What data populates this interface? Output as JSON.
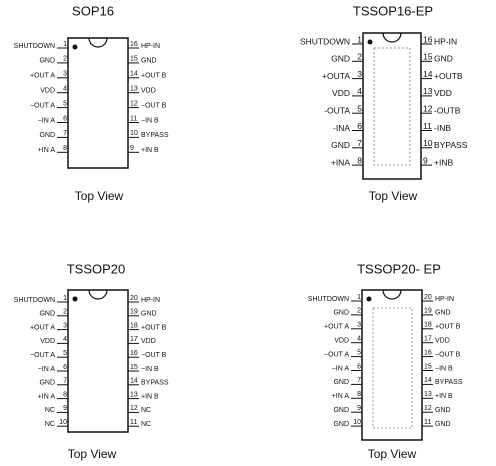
{
  "packages": [
    {
      "title": "SOP16",
      "caption": "Top View",
      "exposed_pad": false,
      "left": [
        {
          "number": "1",
          "label": "SHUTDOWN"
        },
        {
          "number": "2",
          "label": "GND"
        },
        {
          "number": "3",
          "label": "+OUT A"
        },
        {
          "number": "4",
          "label": "VDD"
        },
        {
          "number": "5",
          "label": "−OUT A"
        },
        {
          "number": "6",
          "label": "−IN A"
        },
        {
          "number": "7",
          "label": "GND"
        },
        {
          "number": "8",
          "label": "+IN A"
        }
      ],
      "right": [
        {
          "number": "16",
          "label": "HP-IN"
        },
        {
          "number": "15",
          "label": "GND"
        },
        {
          "number": "14",
          "label": "+OUT B"
        },
        {
          "number": "13",
          "label": "VDD"
        },
        {
          "number": "12",
          "label": "−OUT B"
        },
        {
          "number": "11",
          "label": "−IN B"
        },
        {
          "number": "10",
          "label": "BYPASS"
        },
        {
          "number": "9",
          "label": "+IN B"
        }
      ]
    },
    {
      "title": "TSSOP16-EP",
      "caption": "Top View",
      "exposed_pad": true,
      "left": [
        {
          "number": "1",
          "label": "SHUTDOWN"
        },
        {
          "number": "2",
          "label": "GND"
        },
        {
          "number": "3",
          "label": "+OUTA"
        },
        {
          "number": "4",
          "label": "VDD"
        },
        {
          "number": "5",
          "label": "-OUTA"
        },
        {
          "number": "6",
          "label": "-INA"
        },
        {
          "number": "7",
          "label": "GND"
        },
        {
          "number": "8",
          "label": "+INA"
        }
      ],
      "right": [
        {
          "number": "16",
          "label": "HP-IN"
        },
        {
          "number": "15",
          "label": "GND"
        },
        {
          "number": "14",
          "label": "+OUTB"
        },
        {
          "number": "13",
          "label": "VDD"
        },
        {
          "number": "12",
          "label": "-OUTB"
        },
        {
          "number": "11",
          "label": "-INB"
        },
        {
          "number": "10",
          "label": "BYPASS"
        },
        {
          "number": "9",
          "label": "+INB"
        }
      ]
    },
    {
      "title": "TSSOP20",
      "caption": "Top View",
      "exposed_pad": false,
      "left": [
        {
          "number": "1",
          "label": "SHUTDOWN"
        },
        {
          "number": "2",
          "label": "GND"
        },
        {
          "number": "3",
          "label": "+OUT A"
        },
        {
          "number": "4",
          "label": "VDD"
        },
        {
          "number": "5",
          "label": "−OUT A"
        },
        {
          "number": "6",
          "label": "−IN A"
        },
        {
          "number": "7",
          "label": "GND"
        },
        {
          "number": "8",
          "label": "+IN A"
        },
        {
          "number": "9",
          "label": "NC"
        },
        {
          "number": "10",
          "label": "NC"
        }
      ],
      "right": [
        {
          "number": "20",
          "label": "HP-IN"
        },
        {
          "number": "19",
          "label": "GND"
        },
        {
          "number": "18",
          "label": "+OUT B"
        },
        {
          "number": "17",
          "label": "VDD"
        },
        {
          "number": "16",
          "label": "−OUT B"
        },
        {
          "number": "15",
          "label": "−IN B"
        },
        {
          "number": "14",
          "label": "BYPASS"
        },
        {
          "number": "13",
          "label": "+IN B"
        },
        {
          "number": "12",
          "label": "NC"
        },
        {
          "number": "11",
          "label": "NC"
        }
      ]
    },
    {
      "title": "TSSOP20- EP",
      "caption": "Top View",
      "exposed_pad": true,
      "left": [
        {
          "number": "1",
          "label": "SHUTDOWN"
        },
        {
          "number": "2",
          "label": "GND"
        },
        {
          "number": "3",
          "label": "+OUT A"
        },
        {
          "number": "4",
          "label": "VDD"
        },
        {
          "number": "5",
          "label": "−OUT A"
        },
        {
          "number": "6",
          "label": "−IN A"
        },
        {
          "number": "7",
          "label": "GND"
        },
        {
          "number": "8",
          "label": "+IN A"
        },
        {
          "number": "9",
          "label": "GND"
        },
        {
          "number": "10",
          "label": "GND"
        }
      ],
      "right": [
        {
          "number": "20",
          "label": "HP-IN"
        },
        {
          "number": "19",
          "label": "GND"
        },
        {
          "number": "18",
          "label": "+OUT B"
        },
        {
          "number": "17",
          "label": "VDD"
        },
        {
          "number": "16",
          "label": "−OUT B"
        },
        {
          "number": "15",
          "label": "−IN B"
        },
        {
          "number": "14",
          "label": "BYPASS"
        },
        {
          "number": "13",
          "label": "+IN B"
        },
        {
          "number": "12",
          "label": "GND"
        },
        {
          "number": "11",
          "label": "GND"
        }
      ]
    }
  ]
}
